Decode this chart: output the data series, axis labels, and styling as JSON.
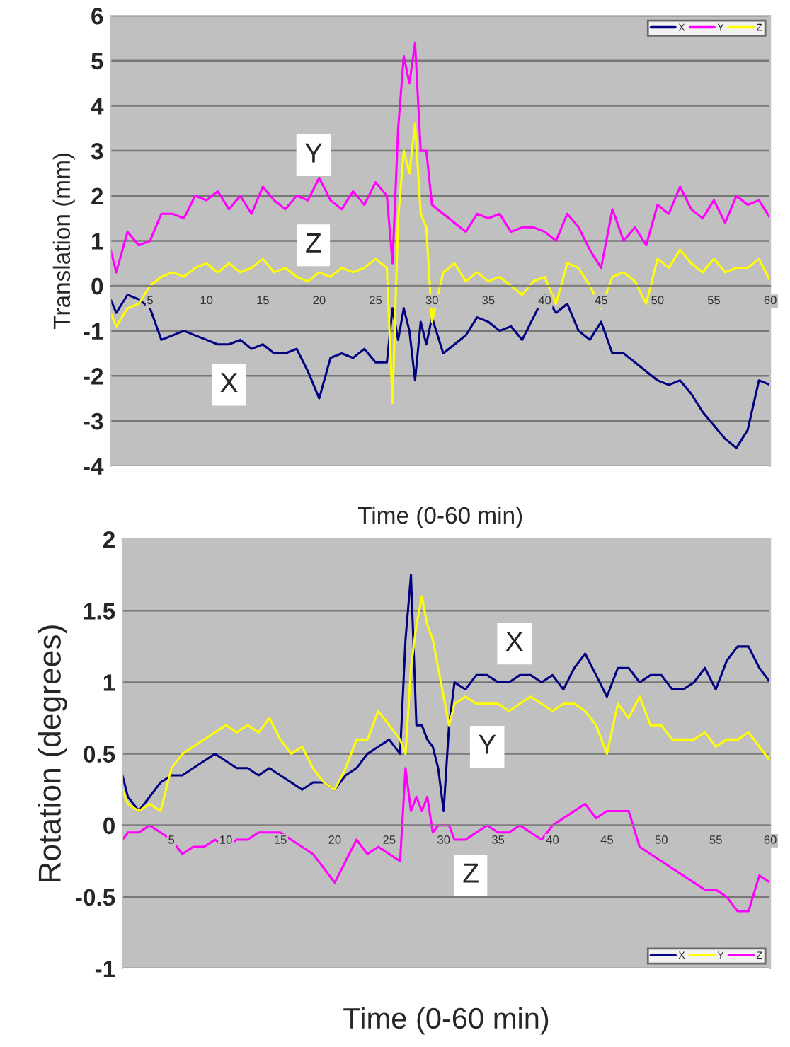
{
  "chart_data": [
    {
      "type": "line",
      "xlabel": "Time (0-60 min)",
      "ylabel": "Translation (mm)",
      "xlim": [
        1.5,
        60
      ],
      "xticks": [
        5,
        10,
        15,
        20,
        25,
        30,
        35,
        40,
        45,
        50,
        55,
        60
      ],
      "ylim": [
        -4,
        6
      ],
      "yticks": [
        -4,
        -3,
        -2,
        -1,
        0,
        1,
        2,
        3,
        4,
        5,
        6
      ],
      "grid": "y",
      "legend": "top right",
      "marker": "none",
      "line_style": "solid",
      "x": [
        1.5,
        2,
        3,
        4,
        5,
        6,
        7,
        8,
        9,
        10,
        11,
        12,
        13,
        14,
        15,
        16,
        17,
        18,
        19,
        20,
        21,
        22,
        23,
        24,
        25,
        26,
        26.5,
        27,
        27.5,
        28,
        28.5,
        29,
        29.5,
        30,
        31,
        32,
        33,
        34,
        35,
        36,
        37,
        38,
        39,
        40,
        41,
        42,
        43,
        44,
        45,
        46,
        47,
        48,
        49,
        50,
        51,
        52,
        53,
        54,
        55,
        56,
        57,
        58,
        59,
        60
      ],
      "series": [
        {
          "name": "X",
          "color": "#000080",
          "values": [
            -0.3,
            -0.6,
            -0.2,
            -0.3,
            -0.5,
            -1.2,
            -1.1,
            -1.0,
            -1.1,
            -1.2,
            -1.3,
            -1.3,
            -1.2,
            -1.4,
            -1.3,
            -1.5,
            -1.5,
            -1.4,
            -1.9,
            -2.5,
            -1.6,
            -1.5,
            -1.6,
            -1.4,
            -1.7,
            -1.7,
            -0.5,
            -1.2,
            -0.5,
            -1.0,
            -2.1,
            -0.8,
            -1.3,
            -0.7,
            -1.5,
            -1.3,
            -1.1,
            -0.7,
            -0.8,
            -1.0,
            -0.9,
            -1.2,
            -0.7,
            -0.2,
            -0.6,
            -0.4,
            -1.0,
            -1.2,
            -0.8,
            -1.5,
            -1.5,
            -1.7,
            -1.9,
            -2.1,
            -2.2,
            -2.1,
            -2.4,
            -2.8,
            -3.1,
            -3.4,
            -3.6,
            -3.2,
            -2.1,
            -2.2
          ]
        },
        {
          "name": "Y",
          "color": "#ff00ff",
          "values": [
            0.8,
            0.3,
            1.2,
            0.9,
            1.0,
            1.6,
            1.6,
            1.5,
            2.0,
            1.9,
            2.1,
            1.7,
            2.0,
            1.6,
            2.2,
            1.9,
            1.7,
            2.0,
            1.9,
            2.4,
            1.9,
            1.7,
            2.1,
            1.8,
            2.3,
            2.0,
            0.5,
            3.5,
            5.1,
            4.5,
            5.4,
            3.0,
            3.0,
            1.8,
            1.6,
            1.4,
            1.2,
            1.6,
            1.5,
            1.6,
            1.2,
            1.3,
            1.3,
            1.2,
            1.0,
            1.6,
            1.3,
            0.8,
            0.4,
            1.7,
            1.0,
            1.3,
            0.9,
            1.8,
            1.6,
            2.2,
            1.7,
            1.5,
            1.9,
            1.4,
            2.0,
            1.8,
            1.9,
            1.5
          ]
        },
        {
          "name": "Z",
          "color": "#ffff00",
          "values": [
            -0.6,
            -0.9,
            -0.5,
            -0.4,
            0.0,
            0.2,
            0.3,
            0.2,
            0.4,
            0.5,
            0.3,
            0.5,
            0.3,
            0.4,
            0.6,
            0.3,
            0.4,
            0.2,
            0.1,
            0.3,
            0.2,
            0.4,
            0.3,
            0.4,
            0.6,
            0.4,
            -2.6,
            1.5,
            3.0,
            2.5,
            3.6,
            1.6,
            1.3,
            -0.8,
            0.3,
            0.5,
            0.1,
            0.3,
            0.1,
            0.2,
            0.0,
            -0.2,
            0.1,
            0.2,
            -0.4,
            0.5,
            0.4,
            0.0,
            -0.5,
            0.2,
            0.3,
            0.1,
            -0.4,
            0.6,
            0.4,
            0.8,
            0.5,
            0.3,
            0.6,
            0.3,
            0.4,
            0.4,
            0.6,
            0.1
          ]
        }
      ],
      "annotations": [
        {
          "text": "Y",
          "x": 19.5,
          "y": 2.9
        },
        {
          "text": "Z",
          "x": 19.5,
          "y": 0.9
        },
        {
          "text": "X",
          "x": 12,
          "y": -2.2
        }
      ]
    },
    {
      "type": "line",
      "xlabel": "Time (0-60 min)",
      "ylabel": "Rotation (degrees)",
      "xlim": [
        0.5,
        60
      ],
      "xticks": [
        5,
        10,
        15,
        20,
        25,
        30,
        35,
        40,
        45,
        50,
        55,
        60
      ],
      "ylim": [
        -1,
        2
      ],
      "yticks": [
        -1,
        -0.5,
        0,
        0.5,
        1,
        1.5,
        2
      ],
      "grid": "y",
      "legend": "bottom right",
      "marker": "none",
      "line_style": "solid",
      "x": [
        0.5,
        1,
        2,
        3,
        4,
        5,
        6,
        7,
        8,
        9,
        10,
        11,
        12,
        13,
        14,
        15,
        16,
        17,
        18,
        19,
        20,
        21,
        22,
        23,
        24,
        25,
        26,
        26.5,
        27,
        27.5,
        28,
        28.5,
        29,
        29.5,
        30,
        30.5,
        31,
        32,
        33,
        34,
        35,
        36,
        37,
        38,
        39,
        40,
        41,
        42,
        43,
        44,
        45,
        46,
        47,
        48,
        49,
        50,
        51,
        52,
        53,
        54,
        55,
        56,
        57,
        58,
        59,
        60
      ],
      "series": [
        {
          "name": "X",
          "color": "#000080",
          "values": [
            0.35,
            0.2,
            0.1,
            0.2,
            0.3,
            0.35,
            0.35,
            0.4,
            0.45,
            0.5,
            0.45,
            0.4,
            0.4,
            0.35,
            0.4,
            0.35,
            0.3,
            0.25,
            0.3,
            0.3,
            0.25,
            0.35,
            0.4,
            0.5,
            0.55,
            0.6,
            0.5,
            1.3,
            1.75,
            0.7,
            0.7,
            0.6,
            0.55,
            0.4,
            0.1,
            0.7,
            1.0,
            0.95,
            1.05,
            1.05,
            1.0,
            1.0,
            1.05,
            1.05,
            1.0,
            1.05,
            0.95,
            1.1,
            1.2,
            1.05,
            0.9,
            1.1,
            1.1,
            1.0,
            1.05,
            1.05,
            0.95,
            0.95,
            1.0,
            1.1,
            0.95,
            1.15,
            1.25,
            1.25,
            1.1,
            1.0
          ]
        },
        {
          "name": "Y",
          "color": "#ffff00",
          "values": [
            0.25,
            0.15,
            0.1,
            0.15,
            0.1,
            0.4,
            0.5,
            0.55,
            0.6,
            0.65,
            0.7,
            0.65,
            0.7,
            0.65,
            0.75,
            0.6,
            0.5,
            0.55,
            0.4,
            0.3,
            0.25,
            0.4,
            0.6,
            0.6,
            0.8,
            0.7,
            0.6,
            0.5,
            1.1,
            1.4,
            1.6,
            1.4,
            1.3,
            1.1,
            0.9,
            0.7,
            0.85,
            0.9,
            0.85,
            0.85,
            0.85,
            0.8,
            0.85,
            0.9,
            0.85,
            0.8,
            0.85,
            0.85,
            0.8,
            0.7,
            0.5,
            0.85,
            0.75,
            0.9,
            0.7,
            0.7,
            0.6,
            0.6,
            0.6,
            0.65,
            0.55,
            0.6,
            0.6,
            0.65,
            0.55,
            0.45
          ]
        },
        {
          "name": "Z",
          "color": "#ff00ff",
          "values": [
            -0.1,
            -0.05,
            -0.05,
            0.0,
            -0.05,
            -0.1,
            -0.2,
            -0.15,
            -0.15,
            -0.1,
            -0.15,
            -0.1,
            -0.1,
            -0.05,
            -0.05,
            -0.05,
            -0.1,
            -0.15,
            -0.2,
            -0.3,
            -0.4,
            -0.25,
            -0.1,
            -0.2,
            -0.15,
            -0.2,
            -0.25,
            0.4,
            0.1,
            0.2,
            0.1,
            0.2,
            -0.05,
            0.0,
            0.0,
            0.0,
            -0.1,
            -0.1,
            -0.05,
            0.0,
            -0.05,
            -0.05,
            0.0,
            -0.05,
            -0.1,
            0.0,
            0.05,
            0.1,
            0.15,
            0.05,
            0.1,
            0.1,
            0.1,
            -0.15,
            -0.2,
            -0.25,
            -0.3,
            -0.35,
            -0.4,
            -0.45,
            -0.45,
            -0.5,
            -0.6,
            -0.6,
            -0.35,
            -0.4
          ]
        }
      ],
      "annotations": [
        {
          "text": "X",
          "x": 36.5,
          "y": 1.27
        },
        {
          "text": "Y",
          "x": 34,
          "y": 0.55
        },
        {
          "text": "Z",
          "x": 32.5,
          "y": -0.35
        }
      ]
    }
  ]
}
